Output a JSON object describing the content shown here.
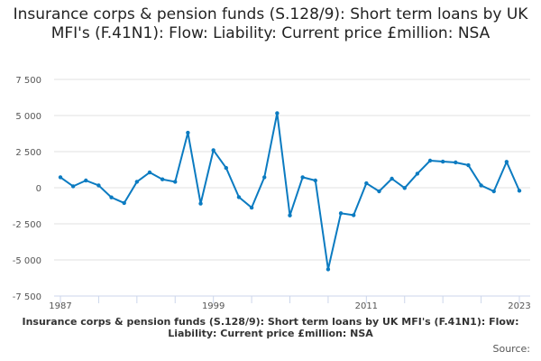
{
  "chart_data": {
    "type": "line",
    "title": "Insurance corps & pension funds (S.128/9): Short term loans by UK MFI's (F.41N1): Flow: Liability: Current price £million: NSA",
    "xlabel": "",
    "ylabel": "",
    "x": [
      1987,
      1988,
      1989,
      1990,
      1991,
      1992,
      1993,
      1994,
      1995,
      1996,
      1997,
      1998,
      1999,
      2000,
      2001,
      2002,
      2003,
      2004,
      2005,
      2006,
      2007,
      2008,
      2009,
      2010,
      2011,
      2012,
      2013,
      2014,
      2015,
      2016,
      2017,
      2018,
      2019,
      2020,
      2021,
      2022,
      2023
    ],
    "series": [
      {
        "name": "Insurance corps & pension funds (S.128/9): Short term loans by UK MFI's (F.41N1): Flow: Liability: Current price £million: NSA",
        "values": [
          725,
          100,
          500,
          160,
          -670,
          -1060,
          410,
          1060,
          580,
          410,
          3810,
          -1100,
          2600,
          1370,
          -650,
          -1380,
          725,
          5160,
          -1920,
          725,
          500,
          -5650,
          -1770,
          -1900,
          310,
          -250,
          625,
          -20,
          975,
          1875,
          1810,
          1750,
          1560,
          160,
          -250,
          1790,
          -210
        ]
      }
    ],
    "xlim": [
      1987,
      2023
    ],
    "ylim": [
      -7500,
      7500
    ],
    "x_tick_labels": [
      "1987",
      "1999",
      "2011",
      "2023"
    ],
    "y_ticks": [
      7500,
      5000,
      2500,
      0,
      -2500,
      -5000,
      -7500
    ],
    "y_tick_labels": [
      "7 500",
      "5 000",
      "2 500",
      "0",
      "-2 500",
      "-5 000",
      "-7 500"
    ],
    "grid": true,
    "line_color": "#0b7bc1"
  },
  "caption": "Insurance corps & pension funds (S.128/9): Short term loans by UK MFI's (F.41N1): Flow: Liability: Current price £million: NSA",
  "source_label": "Source:"
}
